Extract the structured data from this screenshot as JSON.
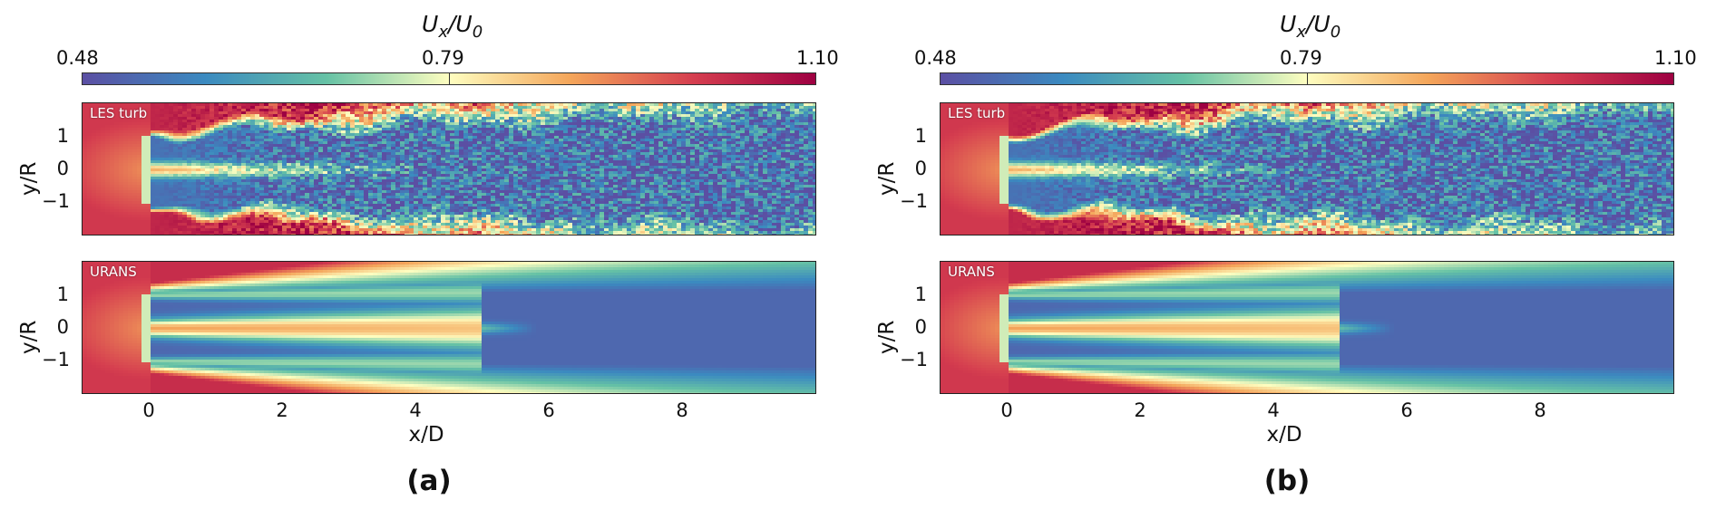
{
  "chart_data": [
    {
      "type": "heatmap",
      "subfigure_label": "(a)",
      "colorbar": {
        "label_main": "U",
        "label_sub_x": "x",
        "label_div": "/U",
        "label_sub_0": "0",
        "min": "0.48",
        "mid": "0.79",
        "max": "1.10",
        "range": [
          0.48,
          1.1
        ],
        "colormap": "Spectral_r"
      },
      "xlabel": "x/D",
      "ylabel": "y/R",
      "xlim": [
        -1,
        10
      ],
      "ylim": [
        -2,
        2
      ],
      "xticks": [
        "0",
        "2",
        "4",
        "6",
        "8"
      ],
      "yticks": [
        "1",
        "0",
        "−1"
      ],
      "panels": [
        {
          "name": "LES turb",
          "kind": "turbulent"
        },
        {
          "name": "URANS",
          "kind": "smooth"
        }
      ]
    },
    {
      "type": "heatmap",
      "subfigure_label": "(b)",
      "colorbar": {
        "label_main": "U",
        "label_sub_x": "x",
        "label_div": "/U",
        "label_sub_0": "0",
        "min": "0.48",
        "mid": "0.79",
        "max": "1.10",
        "range": [
          0.48,
          1.1
        ],
        "colormap": "Spectral_r"
      },
      "xlabel": "x/D",
      "ylabel": "y/R",
      "xlim": [
        -1,
        10
      ],
      "ylim": [
        -2,
        2
      ],
      "xticks": [
        "0",
        "2",
        "4",
        "6",
        "8"
      ],
      "yticks": [
        "1",
        "0",
        "−1"
      ],
      "panels": [
        {
          "name": "LES turb",
          "kind": "turbulent"
        },
        {
          "name": "URANS",
          "kind": "smooth"
        }
      ]
    }
  ],
  "colors": {
    "c_low": "#5b4fa3",
    "c_blue": "#3b8ac0",
    "c_teal": "#66c2a5",
    "c_pale": "#fefec0",
    "c_orange": "#f4a55a",
    "c_red": "#d53e4f",
    "c_dark": "#9e0142"
  }
}
